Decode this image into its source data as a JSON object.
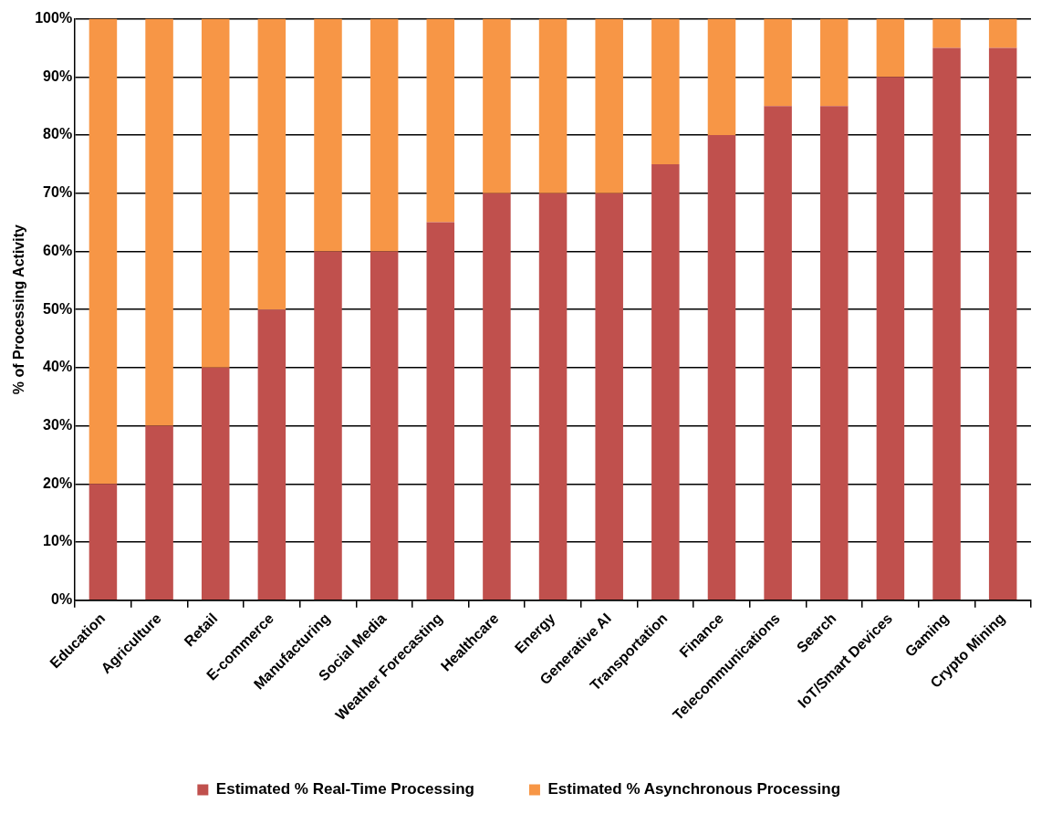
{
  "chart_data": {
    "type": "bar",
    "ylabel": "% of Processing Activity",
    "categories": [
      "Education",
      "Agriculture",
      "Retail",
      "E-commerce",
      "Manufacturing",
      "Social Media",
      "Weather Forecasting",
      "Healthcare",
      "Energy",
      "Generative AI",
      "Transportation",
      "Finance",
      "Telecommunications",
      "Search",
      "IoT/Smart Devices",
      "Gaming",
      "Crypto Mining"
    ],
    "series": [
      {
        "name": "Estimated % Real-Time Processing",
        "color": "#c0504d",
        "values": [
          20,
          30,
          40,
          50,
          60,
          60,
          65,
          70,
          70,
          70,
          75,
          80,
          85,
          85,
          90,
          95,
          95
        ]
      },
      {
        "name": "Estimated % Asynchronous Processing",
        "color": "#f79646",
        "values": [
          80,
          70,
          60,
          50,
          40,
          40,
          35,
          30,
          30,
          30,
          25,
          20,
          15,
          15,
          10,
          5,
          5
        ]
      }
    ],
    "stacked": true,
    "ylim": [
      0,
      100
    ],
    "yticks": [
      {
        "value": 0,
        "label": "0%"
      },
      {
        "value": 10,
        "label": "10%"
      },
      {
        "value": 20,
        "label": "20%"
      },
      {
        "value": 30,
        "label": "30%"
      },
      {
        "value": 40,
        "label": "40%"
      },
      {
        "value": 50,
        "label": "50%"
      },
      {
        "value": 60,
        "label": "60%"
      },
      {
        "value": 70,
        "label": "70%"
      },
      {
        "value": 80,
        "label": "80%"
      },
      {
        "value": 90,
        "label": "90%"
      },
      {
        "value": 100,
        "label": "100%"
      }
    ],
    "grid": "y",
    "legend": "bottom"
  }
}
